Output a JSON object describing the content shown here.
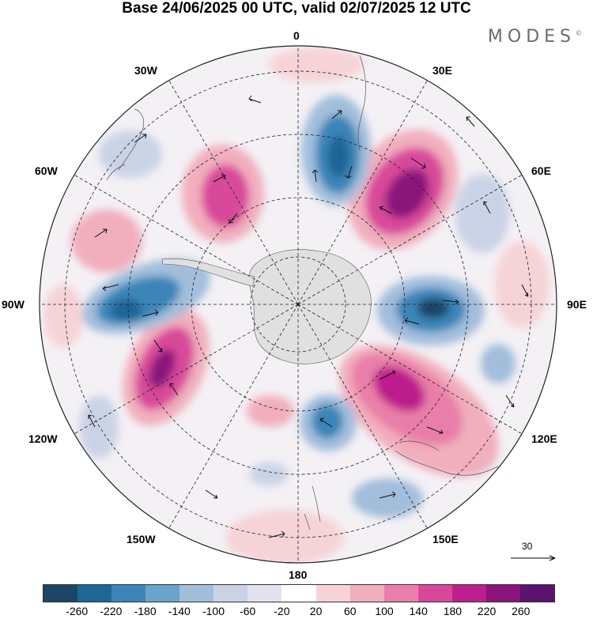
{
  "header": {
    "title": "Base 24/06/2025 00 UTC, valid 02/07/2025 12 UTC",
    "brand": "MODES",
    "brand_mark": "©"
  },
  "map": {
    "projection": "south polar stereographic",
    "longitude_labels": {
      "lon_0": "0",
      "lon_30e": "30E",
      "lon_60e": "60E",
      "lon_90e": "90E",
      "lon_120e": "120E",
      "lon_150e": "150E",
      "lon_180": "180",
      "lon_150w": "150W",
      "lon_120w": "120W",
      "lon_90w": "90W",
      "lon_60w": "60W",
      "lon_30w": "30W"
    },
    "wind_reference": {
      "label": "30"
    }
  },
  "colorbar": {
    "colors": [
      "#1d4566",
      "#1f6595",
      "#3b85b8",
      "#6aa3cb",
      "#a2bedb",
      "#cad3e6",
      "#e4e2ee",
      "#ffffff",
      "#f6d3d6",
      "#f1aebd",
      "#e97fa8",
      "#d8489a",
      "#bd1f8c",
      "#8a157c",
      "#5a1470"
    ],
    "ticks": [
      "-260",
      "-220",
      "-180",
      "-140",
      "-100",
      "-60",
      "-20",
      "20",
      "60",
      "100",
      "140",
      "180",
      "220",
      "260"
    ]
  }
}
